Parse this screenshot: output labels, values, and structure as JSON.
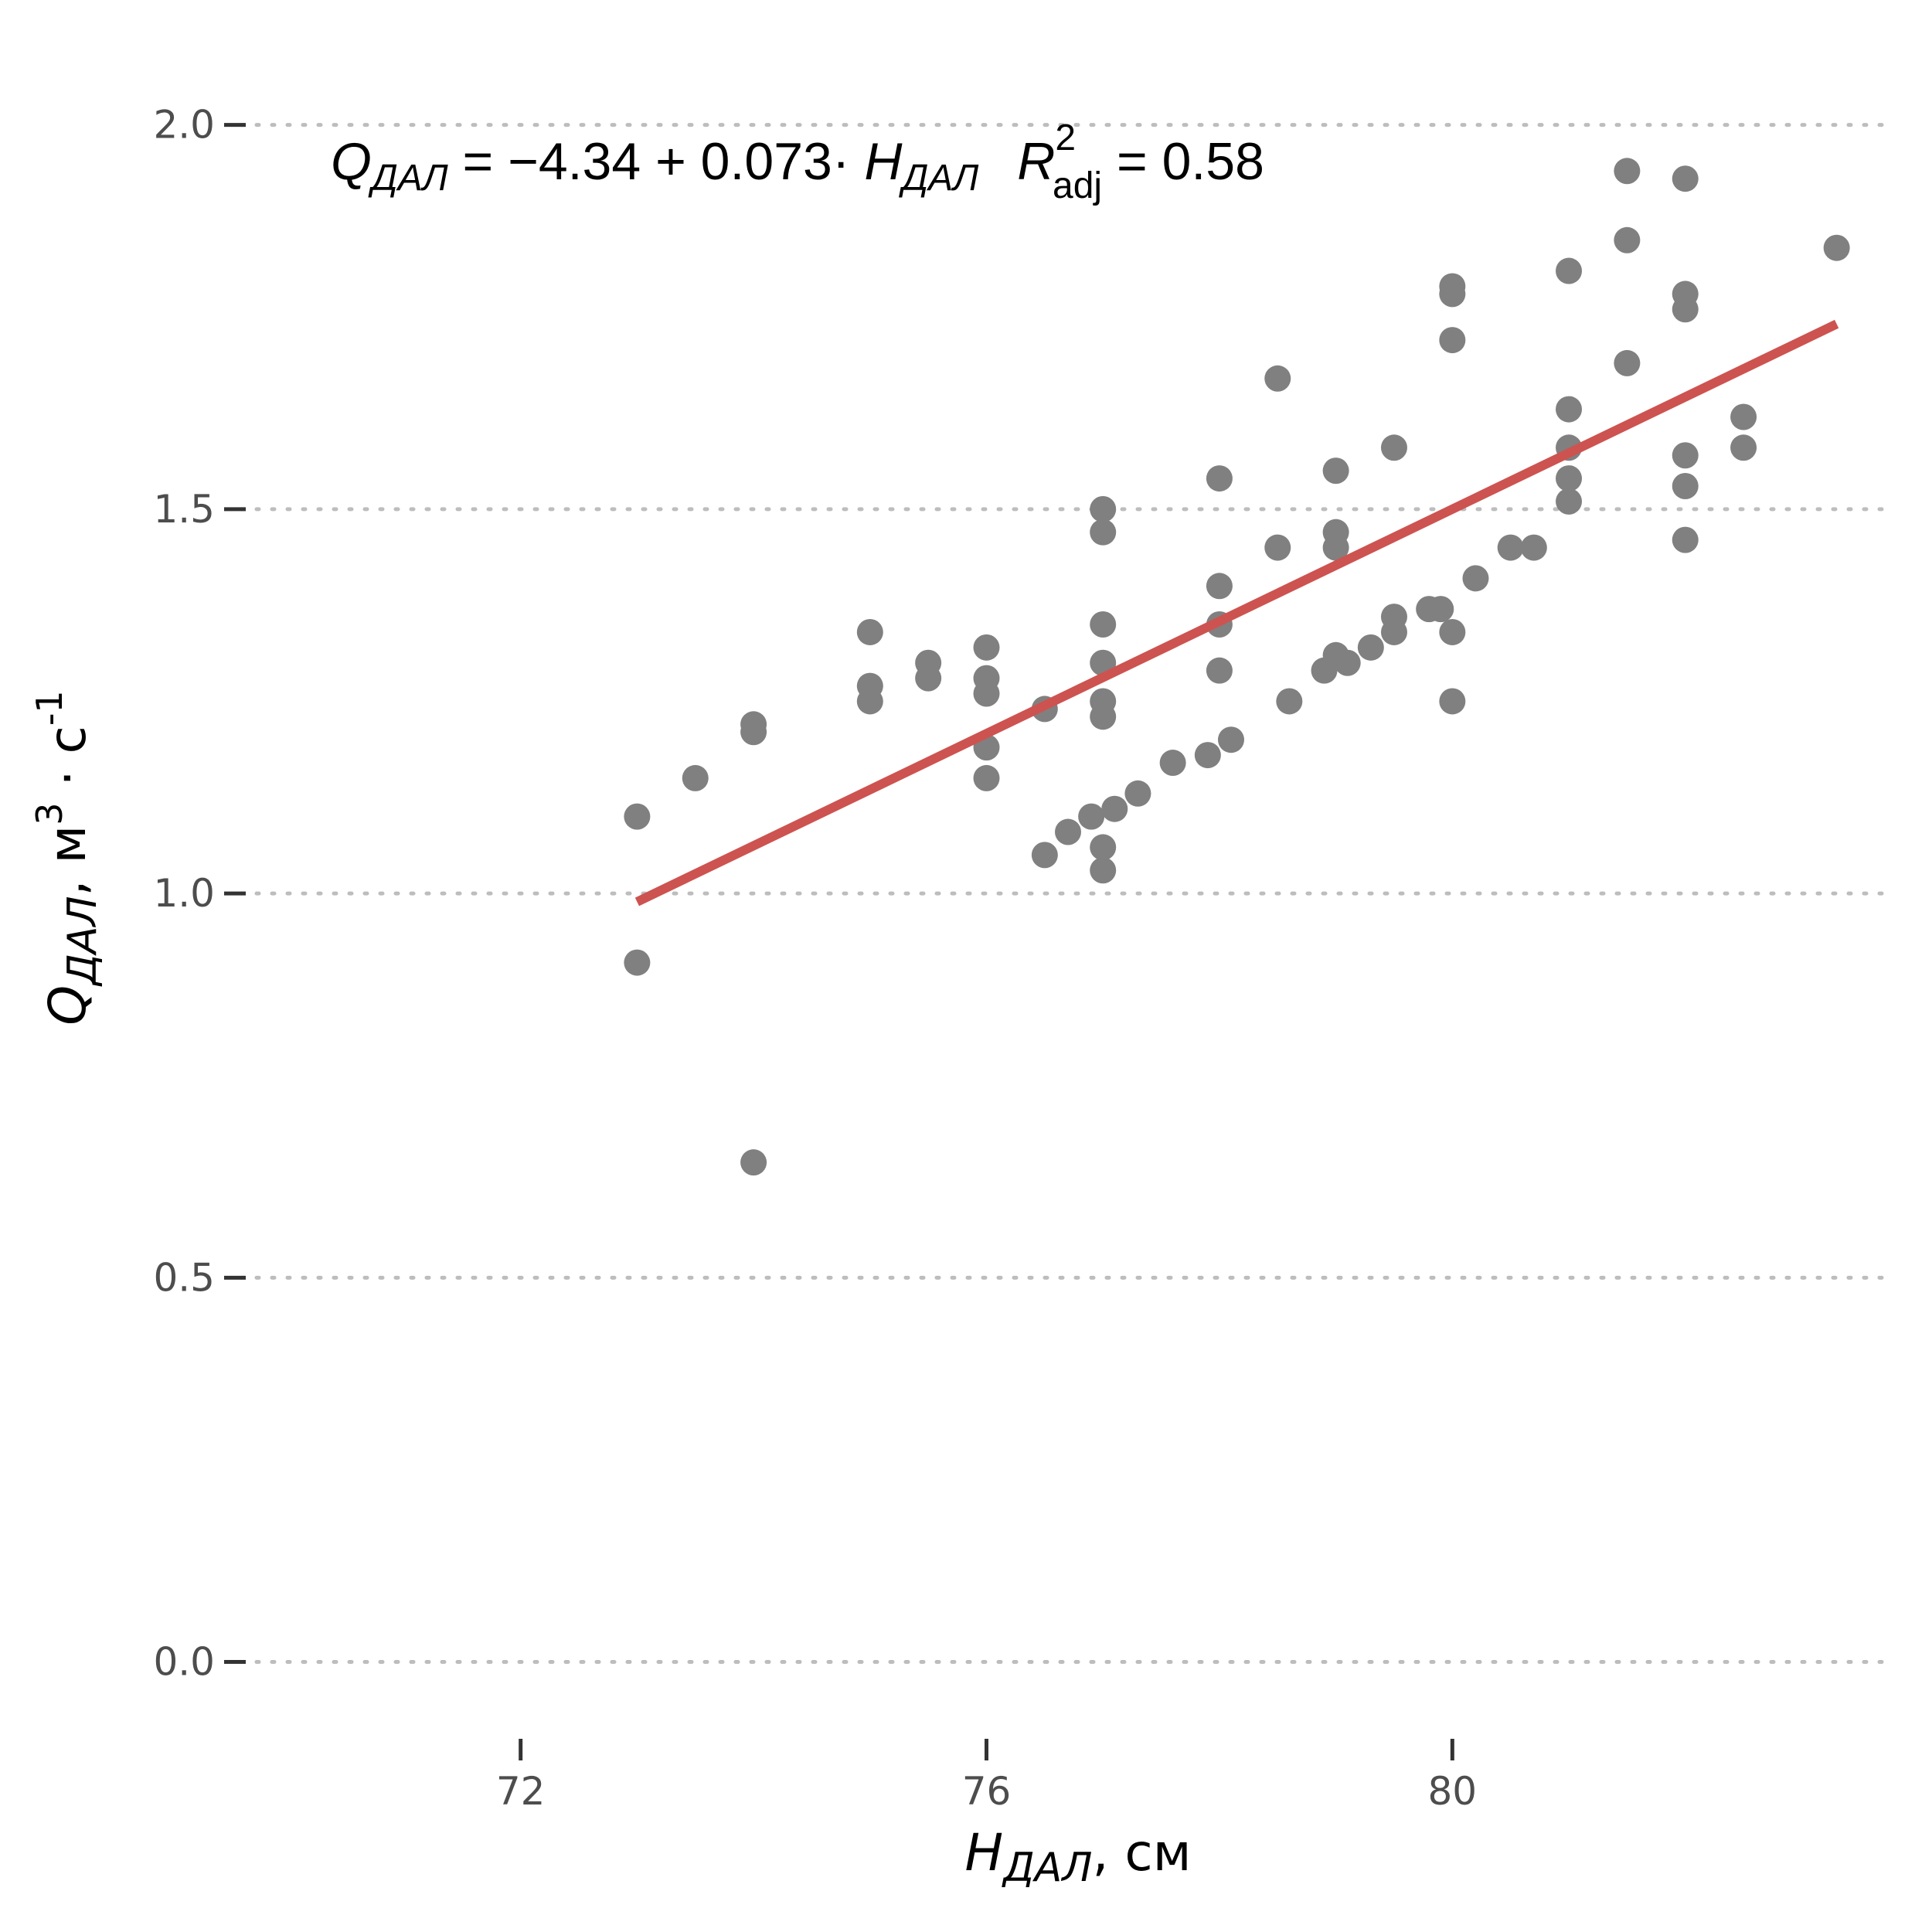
{
  "chart_data": {
    "type": "scatter",
    "xlabel": {
      "main": "H",
      "sub": "ДАЛ",
      "rest": ", см"
    },
    "ylabel": {
      "main": "Q",
      "sub": "ДАЛ",
      "rest1": ", м",
      "sup1": "3",
      "rest2": " · с",
      "sup2": "-1"
    },
    "annotation": {
      "q": "Q",
      "q_sub": "ДАЛ",
      "eq": " = −4.34 + 0.073· ",
      "h": "H",
      "h_sub": "ДАЛ",
      "r": "R",
      "r_sup": "2",
      "r_sub": "adj",
      "r_val": " = 0.58"
    },
    "xlim": [
      69.6,
      83.8
    ],
    "ylim": [
      -0.1,
      2.07
    ],
    "x_ticks": [
      72,
      76,
      80
    ],
    "x_tick_labels": [
      "72",
      "76",
      "80"
    ],
    "y_ticks": [
      0.0,
      0.5,
      1.0,
      1.5,
      2.0
    ],
    "y_tick_labels": [
      "0.0",
      "0.5",
      "1.0",
      "1.5",
      "2.0"
    ],
    "grid": {
      "y_major": "dotted",
      "x_major": "off"
    },
    "fit_line": {
      "intercept": -4.34,
      "slope": 0.073,
      "x_range": [
        73.0,
        83.3
      ],
      "color": "#cd5350"
    },
    "point_color": "#808080",
    "points": [
      [
        73.0,
        1.1
      ],
      [
        73.0,
        0.91
      ],
      [
        73.5,
        1.15
      ],
      [
        74.0,
        1.22
      ],
      [
        74.0,
        1.21
      ],
      [
        74.0,
        0.65
      ],
      [
        75.0,
        1.34
      ],
      [
        75.0,
        1.27
      ],
      [
        75.0,
        1.25
      ],
      [
        75.5,
        1.3
      ],
      [
        75.5,
        1.28
      ],
      [
        76.0,
        1.32
      ],
      [
        76.0,
        1.28
      ],
      [
        76.0,
        1.26
      ],
      [
        76.0,
        1.19
      ],
      [
        76.0,
        1.15
      ],
      [
        76.5,
        1.24
      ],
      [
        76.5,
        1.05
      ],
      [
        76.7,
        1.08
      ],
      [
        76.9,
        1.1
      ],
      [
        77.0,
        1.5
      ],
      [
        77.0,
        1.47
      ],
      [
        77.0,
        1.35
      ],
      [
        77.0,
        1.3
      ],
      [
        77.0,
        1.25
      ],
      [
        77.0,
        1.23
      ],
      [
        77.0,
        1.06
      ],
      [
        77.0,
        1.03
      ],
      [
        77.1,
        1.11
      ],
      [
        77.3,
        1.13
      ],
      [
        77.6,
        1.17
      ],
      [
        77.9,
        1.18
      ],
      [
        78.0,
        1.54
      ],
      [
        78.0,
        1.4
      ],
      [
        78.0,
        1.35
      ],
      [
        78.0,
        1.29
      ],
      [
        78.1,
        1.2
      ],
      [
        78.5,
        1.67
      ],
      [
        78.5,
        1.45
      ],
      [
        78.6,
        1.25
      ],
      [
        78.9,
        1.29
      ],
      [
        79.0,
        1.55
      ],
      [
        79.0,
        1.47
      ],
      [
        79.0,
        1.45
      ],
      [
        79.0,
        1.31
      ],
      [
        79.1,
        1.3
      ],
      [
        79.3,
        1.32
      ],
      [
        79.5,
        1.58
      ],
      [
        79.5,
        1.36
      ],
      [
        79.5,
        1.34
      ],
      [
        79.8,
        1.37
      ],
      [
        79.9,
        1.37
      ],
      [
        80.0,
        1.79
      ],
      [
        80.0,
        1.78
      ],
      [
        80.0,
        1.72
      ],
      [
        80.0,
        1.34
      ],
      [
        80.0,
        1.25
      ],
      [
        80.2,
        1.41
      ],
      [
        80.5,
        1.45
      ],
      [
        80.7,
        1.45
      ],
      [
        81.0,
        1.81
      ],
      [
        81.0,
        1.63
      ],
      [
        81.0,
        1.58
      ],
      [
        81.0,
        1.54
      ],
      [
        81.0,
        1.51
      ],
      [
        81.5,
        1.94
      ],
      [
        81.5,
        1.85
      ],
      [
        81.5,
        1.69
      ],
      [
        82.0,
        1.93
      ],
      [
        82.0,
        1.78
      ],
      [
        82.0,
        1.76
      ],
      [
        82.0,
        1.57
      ],
      [
        82.0,
        1.53
      ],
      [
        82.0,
        1.46
      ],
      [
        82.5,
        1.62
      ],
      [
        82.5,
        1.58
      ],
      [
        83.3,
        1.84
      ]
    ]
  }
}
